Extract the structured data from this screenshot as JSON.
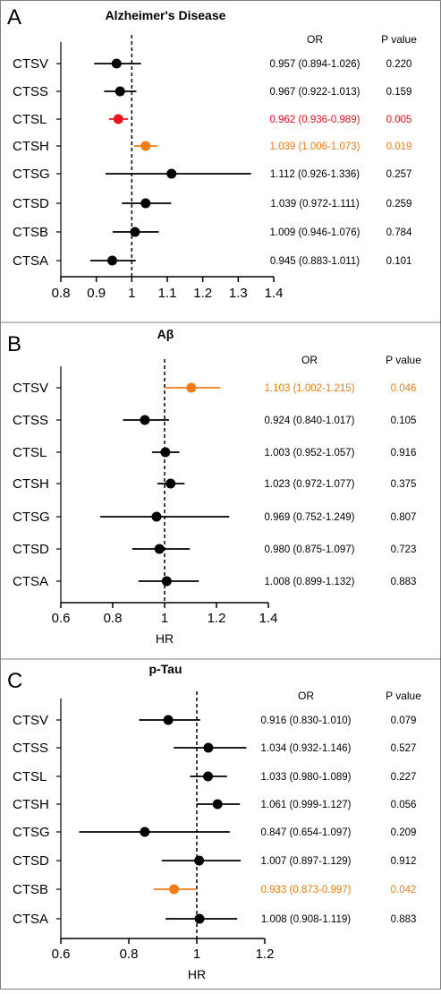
{
  "colors": {
    "black": "#000000",
    "red": "#e8141f",
    "orange": "#f07d16",
    "frame": "#7f7f7f"
  },
  "chart_data": [
    {
      "type": "forest",
      "panel_letter": "A",
      "title": "Alzheimer's Disease",
      "xlabel": "",
      "xlim": [
        0.8,
        1.4
      ],
      "ticks": [
        "0.8",
        "0.9",
        "1",
        "1.1",
        "1.2",
        "1.3",
        "1.4"
      ],
      "reference": 1,
      "col_or": "OR",
      "col_p": "P value",
      "rows": [
        {
          "label": "CTSV",
          "est": 0.957,
          "lo": 0.894,
          "hi": 1.026,
          "or_text": "0.957 (0.894-1.026)",
          "p": "0.220",
          "color": "black"
        },
        {
          "label": "CTSS",
          "est": 0.967,
          "lo": 0.922,
          "hi": 1.013,
          "or_text": "0.967 (0.922-1.013)",
          "p": "0.159",
          "color": "black"
        },
        {
          "label": "CTSL",
          "est": 0.962,
          "lo": 0.936,
          "hi": 0.989,
          "or_text": "0.962 (0.936-0.989)",
          "p": "0.005",
          "color": "red"
        },
        {
          "label": "CTSH",
          "est": 1.039,
          "lo": 1.006,
          "hi": 1.073,
          "or_text": "1.039 (1.006-1.073)",
          "p": "0.019",
          "color": "orange"
        },
        {
          "label": "CTSG",
          "est": 1.112,
          "lo": 0.926,
          "hi": 1.336,
          "or_text": "1.112 (0.926-1.336)",
          "p": "0.257",
          "color": "black"
        },
        {
          "label": "CTSD",
          "est": 1.039,
          "lo": 0.972,
          "hi": 1.111,
          "or_text": "1.039 (0.972-1.111)",
          "p": "0.259",
          "color": "black"
        },
        {
          "label": "CTSB",
          "est": 1.009,
          "lo": 0.946,
          "hi": 1.076,
          "or_text": "1.009 (0.946-1.076)",
          "p": "0.784",
          "color": "black"
        },
        {
          "label": "CTSA",
          "est": 0.945,
          "lo": 0.883,
          "hi": 1.011,
          "or_text": "0.945 (0.883-1.011)",
          "p": "0.101",
          "color": "black"
        }
      ]
    },
    {
      "type": "forest",
      "panel_letter": "B",
      "title": "Aβ",
      "xlabel": "HR",
      "xlim": [
        0.6,
        1.4
      ],
      "ticks": [
        "0.6",
        "0.8",
        "1",
        "1.2",
        "1.4"
      ],
      "reference": 1,
      "col_or": "OR",
      "col_p": "P value",
      "rows": [
        {
          "label": "CTSV",
          "est": 1.103,
          "lo": 1.002,
          "hi": 1.215,
          "or_text": "1.103 (1.002-1.215)",
          "p": "0.046",
          "color": "orange"
        },
        {
          "label": "CTSS",
          "est": 0.924,
          "lo": 0.84,
          "hi": 1.017,
          "or_text": "0.924 (0.840-1.017)",
          "p": "0.105",
          "color": "black"
        },
        {
          "label": "CTSL",
          "est": 1.003,
          "lo": 0.952,
          "hi": 1.057,
          "or_text": "1.003 (0.952-1.057)",
          "p": "0.916",
          "color": "black"
        },
        {
          "label": "CTSH",
          "est": 1.023,
          "lo": 0.972,
          "hi": 1.077,
          "or_text": "1.023 (0.972-1.077)",
          "p": "0.375",
          "color": "black"
        },
        {
          "label": "CTSG",
          "est": 0.969,
          "lo": 0.752,
          "hi": 1.249,
          "or_text": "0.969 (0.752-1.249)",
          "p": "0.807",
          "color": "black"
        },
        {
          "label": "CTSD",
          "est": 0.98,
          "lo": 0.875,
          "hi": 1.097,
          "or_text": "0.980 (0.875-1.097)",
          "p": "0.723",
          "color": "black"
        },
        {
          "label": "CTSA",
          "est": 1.008,
          "lo": 0.899,
          "hi": 1.132,
          "or_text": "1.008 (0.899-1.132)",
          "p": "0.883",
          "color": "black"
        }
      ]
    },
    {
      "type": "forest",
      "panel_letter": "C",
      "title": "p-Tau",
      "xlabel": "HR",
      "xlim": [
        0.6,
        1.2
      ],
      "ticks": [
        "0.6",
        "0.8",
        "1",
        "1.2"
      ],
      "reference": 1,
      "col_or": "OR",
      "col_p": "P value",
      "rows": [
        {
          "label": "CTSV",
          "est": 0.916,
          "lo": 0.83,
          "hi": 1.01,
          "or_text": "0.916 (0.830-1.010)",
          "p": "0.079",
          "color": "black"
        },
        {
          "label": "CTSS",
          "est": 1.034,
          "lo": 0.932,
          "hi": 1.146,
          "or_text": "1.034 (0.932-1.146)",
          "p": "0.527",
          "color": "black"
        },
        {
          "label": "CTSL",
          "est": 1.033,
          "lo": 0.98,
          "hi": 1.089,
          "or_text": "1.033 (0.980-1.089)",
          "p": "0.227",
          "color": "black"
        },
        {
          "label": "CTSH",
          "est": 1.061,
          "lo": 0.999,
          "hi": 1.127,
          "or_text": "1.061 (0.999-1.127)",
          "p": "0.056",
          "color": "black"
        },
        {
          "label": "CTSG",
          "est": 0.847,
          "lo": 0.654,
          "hi": 1.097,
          "or_text": "0.847 (0.654-1.097)",
          "p": "0.209",
          "color": "black"
        },
        {
          "label": "CTSD",
          "est": 1.007,
          "lo": 0.897,
          "hi": 1.129,
          "or_text": "1.007 (0.897-1.129)",
          "p": "0.912",
          "color": "black"
        },
        {
          "label": "CTSB",
          "est": 0.933,
          "lo": 0.873,
          "hi": 0.997,
          "or_text": "0.933 (0.873-0.997)",
          "p": "0.042",
          "color": "orange"
        },
        {
          "label": "CTSA",
          "est": 1.008,
          "lo": 0.908,
          "hi": 1.119,
          "or_text": "1.008 (0.908-1.119)",
          "p": "0.883",
          "color": "black"
        }
      ]
    }
  ]
}
